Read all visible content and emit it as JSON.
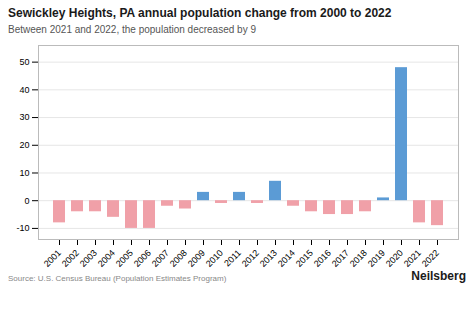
{
  "chart_data": {
    "type": "bar",
    "title": "Sewickley Heights, PA annual population change from 2000 to 2022",
    "subtitle": "Between 2021 and 2022, the population decreased by 9",
    "annotations": [
      "Source: U.S. Census Bureau (Population Estimates Program)",
      "Neilsberg"
    ],
    "categories": [
      "2001",
      "2002",
      "2003",
      "2004",
      "2005",
      "2006",
      "2007",
      "2008",
      "2009",
      "2010",
      "2011",
      "2012",
      "2013",
      "2014",
      "2015",
      "2016",
      "2017",
      "2018",
      "2019",
      "2020",
      "2021",
      "2022"
    ],
    "values": [
      -8,
      -4,
      -4,
      -6,
      -10,
      -10,
      -2,
      -3,
      3,
      -1,
      3,
      -1,
      7,
      -2,
      -4,
      -5,
      -5,
      -4,
      1,
      48,
      -8,
      -9
    ],
    "colors": [
      "#f0a0a8",
      "#f0a0a8",
      "#f0a0a8",
      "#f0a0a8",
      "#f0a0a8",
      "#f0a0a8",
      "#f0a0a8",
      "#f0a0a8",
      "#5b9bd5",
      "#f0a0a8",
      "#5b9bd5",
      "#f0a0a8",
      "#5b9bd5",
      "#f0a0a8",
      "#f0a0a8",
      "#f0a0a8",
      "#f0a0a8",
      "#f0a0a8",
      "#5b9bd5",
      "#5b9bd5",
      "#f0a0a8",
      "#f0a0a8"
    ],
    "ylim": [
      -14,
      56
    ],
    "yticks": [
      -10,
      0,
      10,
      20,
      30,
      40,
      50
    ],
    "grid": true
  }
}
